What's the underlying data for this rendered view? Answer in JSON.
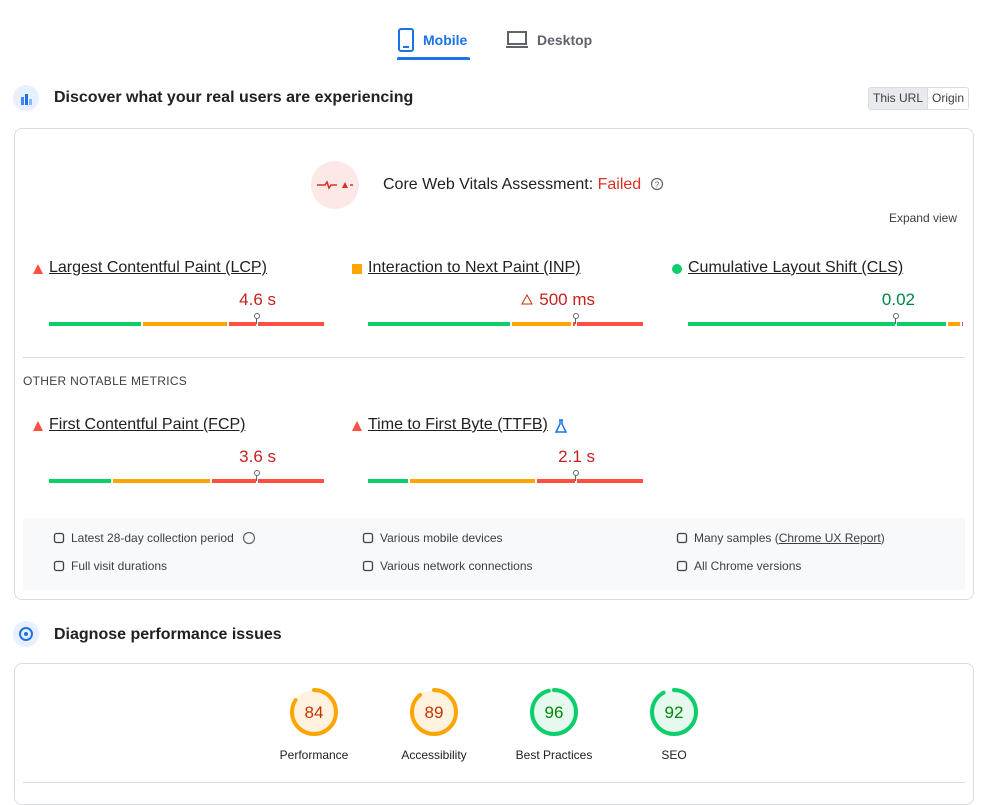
{
  "tabs": [
    {
      "label": "Mobile",
      "active": true
    },
    {
      "label": "Desktop",
      "active": false
    }
  ],
  "field": {
    "title": "Discover what your real users are experiencing",
    "toggle": [
      {
        "label": "This URL",
        "active": true
      },
      {
        "label": "Origin",
        "active": false
      }
    ],
    "assessment": {
      "label": "Core Web Vitals Assessment:",
      "status": "Failed"
    },
    "expand": "Expand view",
    "core_metrics": [
      {
        "name": "Largest Contentful Paint (LCP)",
        "value": "4.6 s",
        "rating": "poor",
        "value_rating": "poor",
        "distribution": [
          34,
          31,
          35
        ]
      },
      {
        "name": "Interaction to Next Paint (INP)",
        "value": "500 ms",
        "rating": "average",
        "value_rating": "poor",
        "value_warning": true,
        "distribution": [
          52,
          22,
          26
        ]
      },
      {
        "name": "Cumulative Layout Shift (CLS)",
        "value": "0.02",
        "rating": "good",
        "value_rating": "good",
        "distribution": [
          94,
          5,
          1
        ]
      }
    ],
    "other_heading": "OTHER NOTABLE METRICS",
    "other_metrics": [
      {
        "name": "First Contentful Paint (FCP)",
        "value": "3.6 s",
        "rating": "poor",
        "value_rating": "poor",
        "distribution": [
          23,
          36,
          41
        ]
      },
      {
        "name": "Time to First Byte (TTFB)",
        "value": "2.1 s",
        "rating": "poor",
        "value_rating": "poor",
        "experimental": true,
        "distribution": [
          15,
          46,
          39
        ]
      }
    ],
    "info": [
      [
        "Latest 28-day collection period",
        "Full visit durations"
      ],
      [
        "Various mobile devices",
        "Various network connections"
      ],
      [
        {
          "before": "Many samples (",
          "link": "Chrome UX Report",
          "after": ")"
        },
        "All Chrome versions"
      ]
    ]
  },
  "lab": {
    "title": "Diagnose performance issues",
    "scores": [
      {
        "label": "Performance",
        "value": 84
      },
      {
        "label": "Accessibility",
        "value": 89
      },
      {
        "label": "Best Practices",
        "value": 96
      },
      {
        "label": "SEO",
        "value": 92
      }
    ]
  }
}
